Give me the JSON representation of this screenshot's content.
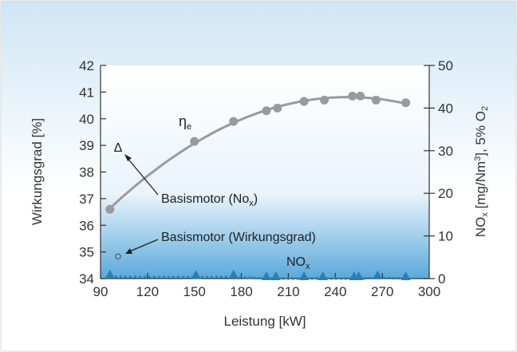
{
  "chart_data": {
    "type": "line",
    "xlabel": "Leistung [kW]",
    "ylabel_left": "Wirkungsgrad [%]",
    "ylabel_right": "NOx [mg/Nm³], 5% O2",
    "xlim": [
      90,
      300
    ],
    "ylim_left": [
      34,
      42
    ],
    "ylim_right": [
      0,
      50
    ],
    "x_ticks": [
      "90",
      "120",
      "150",
      "180",
      "210",
      "240",
      "270",
      "300"
    ],
    "y_left_ticks": [
      "34",
      "35",
      "36",
      "37",
      "38",
      "39",
      "40",
      "41",
      "42"
    ],
    "y_right_ticks": [
      "0",
      "10",
      "20",
      "30",
      "40",
      "50"
    ],
    "grid": false,
    "series": [
      {
        "name": "ηe",
        "axis": "left",
        "marker": "circle",
        "color": "#9a9a9a",
        "x": [
          96,
          150,
          175,
          196,
          203,
          220,
          233,
          251,
          256,
          266,
          285
        ],
        "y": [
          36.6,
          39.15,
          39.9,
          40.3,
          40.4,
          40.65,
          40.7,
          40.85,
          40.85,
          40.7,
          40.6
        ]
      },
      {
        "name": "NOx",
        "axis": "right",
        "marker": "triangle",
        "color": "#2a7fb5",
        "x": [
          96,
          151,
          175,
          196,
          202,
          220,
          232,
          252,
          255,
          267,
          285
        ],
        "y": [
          0.4,
          0.3,
          0.4,
          0.0,
          0.0,
          0.0,
          0.0,
          0.0,
          0.0,
          0.2,
          0.0
        ]
      }
    ],
    "annotations": [
      {
        "text": "Basismotor (Nox)",
        "base": "Basismotor (No",
        "sub": "x",
        "close": ")"
      },
      {
        "text": "Basismotor (Wirkungsgrad)"
      }
    ],
    "series_labels": {
      "eta": {
        "base": "η",
        "sub": "e"
      },
      "nox": {
        "base": "NO",
        "sub": "x"
      }
    },
    "legend_symbols": {
      "triangle": "Δ",
      "circle": "○"
    },
    "ylabel_right_parts": {
      "a": "NO",
      "a_sub": "x",
      "b": " [mg/Nm",
      "b_sup": "3",
      "c": "], 5% O",
      "c_sub": "2"
    }
  },
  "colors": {
    "background_top": "#4aa0d6",
    "background_bottom": "#cfe6f5",
    "plot_area": "#ffffff",
    "eta_series": "#9a9a9a",
    "nox_series": "#2a7fb5"
  }
}
